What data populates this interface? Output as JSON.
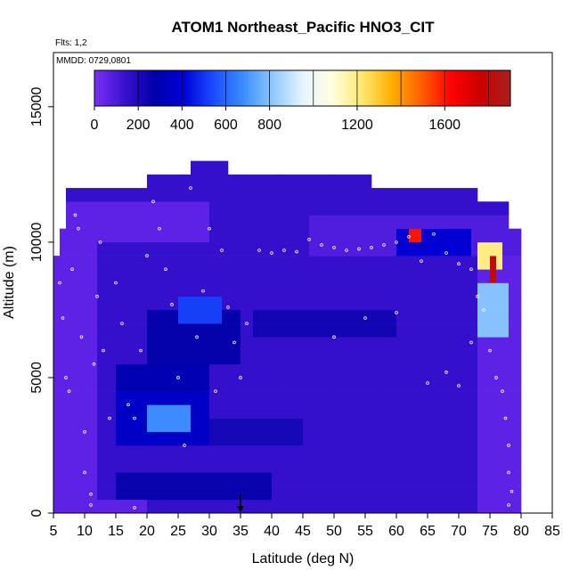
{
  "chart_data": {
    "type": "heatmap",
    "title": "ATOM1 Northeast_Pacific HNO3_CIT",
    "flights_note": "Flts: 1,2",
    "date_note": "MMDD: 0729,0801",
    "xlabel": "Latitude (deg N)",
    "ylabel": "Altitude (m)",
    "xlim": [
      5,
      85
    ],
    "ylim": [
      0,
      17000
    ],
    "x_ticks": [
      5,
      10,
      15,
      20,
      25,
      30,
      35,
      40,
      45,
      50,
      55,
      60,
      65,
      70,
      75,
      80,
      85
    ],
    "y_ticks": [
      0,
      5000,
      10000,
      15000
    ],
    "colorbar": {
      "range": [
        0,
        1900
      ],
      "tick_values": [
        0,
        200,
        400,
        600,
        800,
        1200,
        1600
      ],
      "colors": [
        "#7b2ff7",
        "#3a12d0",
        "#0000a8",
        "#0000d8",
        "#1a4cff",
        "#3a8cff",
        "#8ec8ff",
        "#e6f4ff",
        "#ffffe0",
        "#ffe870",
        "#ffb000",
        "#ff6000",
        "#ff0000",
        "#cc0000",
        "#a82020"
      ]
    },
    "marker": {
      "latitude": 35,
      "symbol": "arrow"
    },
    "grid_x": {
      "start": 5,
      "end": 80,
      "step": 1
    },
    "grid_y": {
      "start": 0,
      "end": 13000,
      "step": 500
    },
    "regions": [
      {
        "lat": [
          5,
          80
        ],
        "alt": [
          0,
          13000
        ],
        "value": 150
      },
      {
        "lat": [
          5,
          12
        ],
        "alt": [
          0,
          11500
        ],
        "value": 60
      },
      {
        "lat": [
          73,
          80
        ],
        "alt": [
          0,
          10500
        ],
        "value": 60
      },
      {
        "lat": [
          5,
          30
        ],
        "alt": [
          10000,
          11500
        ],
        "value": 60
      },
      {
        "lat": [
          46,
          80
        ],
        "alt": [
          9500,
          11000
        ],
        "value": 90
      },
      {
        "lat": [
          12,
          20
        ],
        "alt": [
          0,
          500
        ],
        "value": 60
      },
      {
        "lat": [
          20,
          35
        ],
        "alt": [
          5500,
          7500
        ],
        "value": 260
      },
      {
        "lat": [
          25,
          32
        ],
        "alt": [
          6800,
          8000
        ],
        "value": 520
      },
      {
        "lat": [
          15,
          30
        ],
        "alt": [
          2500,
          4500
        ],
        "value": 360
      },
      {
        "lat": [
          20,
          27
        ],
        "alt": [
          2800,
          4000
        ],
        "value": 680
      },
      {
        "lat": [
          15,
          30
        ],
        "alt": [
          4500,
          5500
        ],
        "value": 300
      },
      {
        "lat": [
          15,
          40
        ],
        "alt": [
          500,
          1500
        ],
        "value": 250
      },
      {
        "lat": [
          30,
          45
        ],
        "alt": [
          2500,
          3500
        ],
        "value": 220
      },
      {
        "lat": [
          37,
          60
        ],
        "alt": [
          6500,
          7500
        ],
        "value": 230
      },
      {
        "lat": [
          60,
          72
        ],
        "alt": [
          9500,
          10500
        ],
        "value": 400
      },
      {
        "lat": [
          62,
          64
        ],
        "alt": [
          9600,
          10400
        ],
        "value": 1600
      },
      {
        "lat": [
          73,
          77
        ],
        "alt": [
          9000,
          10000
        ],
        "value": 1200
      },
      {
        "lat": [
          75,
          76
        ],
        "alt": [
          8500,
          9500
        ],
        "value": 1800
      },
      {
        "lat": [
          73,
          78
        ],
        "alt": [
          6500,
          8500
        ],
        "value": 800
      }
    ],
    "obs_points": [
      [
        6,
        8500
      ],
      [
        6.5,
        7200
      ],
      [
        7,
        5000
      ],
      [
        7.5,
        4500
      ],
      [
        8,
        9000
      ],
      [
        8.5,
        11000
      ],
      [
        9,
        10500
      ],
      [
        9.5,
        6500
      ],
      [
        10,
        3000
      ],
      [
        10,
        1500
      ],
      [
        11,
        700
      ],
      [
        11,
        300
      ],
      [
        11.5,
        5500
      ],
      [
        12,
        8000
      ],
      [
        12.5,
        10000
      ],
      [
        13,
        6000
      ],
      [
        14,
        3500
      ],
      [
        15,
        8500
      ],
      [
        16,
        7000
      ],
      [
        17,
        4000
      ],
      [
        18,
        3500
      ],
      [
        18,
        200
      ],
      [
        19,
        6000
      ],
      [
        20,
        9500
      ],
      [
        21,
        11500
      ],
      [
        22,
        10500
      ],
      [
        23,
        9000
      ],
      [
        24,
        7700
      ],
      [
        25,
        5000
      ],
      [
        26,
        2500
      ],
      [
        27,
        12000
      ],
      [
        28,
        6500
      ],
      [
        29,
        8200
      ],
      [
        30,
        10500
      ],
      [
        31,
        4500
      ],
      [
        32,
        9700
      ],
      [
        33,
        7600
      ],
      [
        34,
        6300
      ],
      [
        35,
        5000
      ],
      [
        36,
        7000
      ],
      [
        38,
        9700
      ],
      [
        40,
        9600
      ],
      [
        42,
        9700
      ],
      [
        44,
        9650
      ],
      [
        46,
        10100
      ],
      [
        48,
        9900
      ],
      [
        50,
        9800
      ],
      [
        52,
        9700
      ],
      [
        54,
        9750
      ],
      [
        56,
        9800
      ],
      [
        58,
        9900
      ],
      [
        60,
        10000
      ],
      [
        62,
        10200
      ],
      [
        64,
        9300
      ],
      [
        66,
        10300
      ],
      [
        68,
        9600
      ],
      [
        70,
        9200
      ],
      [
        72,
        9000
      ],
      [
        73,
        8000
      ],
      [
        74,
        7500
      ],
      [
        75,
        6000
      ],
      [
        76,
        5000
      ],
      [
        77,
        4500
      ],
      [
        77.5,
        3500
      ],
      [
        78,
        2500
      ],
      [
        78,
        1500
      ],
      [
        78.5,
        800
      ],
      [
        78,
        300
      ],
      [
        68,
        5200
      ],
      [
        70,
        4700
      ],
      [
        65,
        4800
      ],
      [
        72,
        6300
      ],
      [
        60,
        7400
      ],
      [
        55,
        7200
      ],
      [
        50,
        6500
      ]
    ]
  }
}
